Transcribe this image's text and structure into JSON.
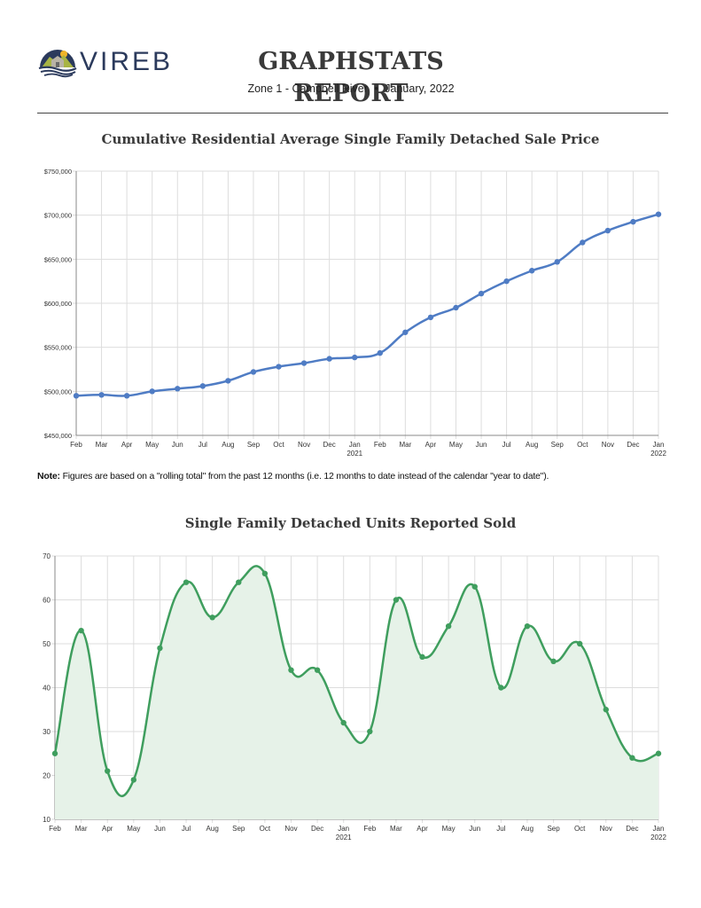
{
  "header": {
    "logo_text": "VIREB",
    "title": "GRAPHSTATS REPORT",
    "zone": "Zone 1 - Campbell River",
    "separator": "•",
    "period": "January, 2022"
  },
  "note": {
    "label": "Note:",
    "text": "Figures are based on a \"rolling total\" from the past 12 months (i.e. 12 months to date instead of the calendar \"year to date\")."
  },
  "colors": {
    "price_line": "#4f7cc4",
    "units_line": "#3f9e5e",
    "units_fill": "#e6f2e8",
    "grid": "#dddddd",
    "axis": "#888888"
  },
  "chart_data": [
    {
      "type": "line",
      "title": "Cumulative Residential Average Single Family Detached Sale Price",
      "xlabel": "",
      "ylabel": "",
      "categories": [
        "Feb",
        "Mar",
        "Apr",
        "May",
        "Jun",
        "Jul",
        "Aug",
        "Sep",
        "Oct",
        "Nov",
        "Dec",
        "Jan",
        "Feb",
        "Mar",
        "Apr",
        "May",
        "Jun",
        "Jul",
        "Aug",
        "Sep",
        "Oct",
        "Nov",
        "Dec",
        "Jan"
      ],
      "year_labels": {
        "11": "2021",
        "23": "2022"
      },
      "series": [
        {
          "name": "Average Sale Price",
          "values": [
            495000,
            496000,
            495000,
            500000,
            503000,
            506000,
            512000,
            522000,
            528000,
            532000,
            537000,
            538500,
            543500,
            567000,
            584000,
            595000,
            611000,
            625000,
            637000,
            647000,
            669000,
            682500,
            692500,
            701000
          ]
        }
      ],
      "ylim": [
        450000,
        750000
      ],
      "yticks": [
        450000,
        500000,
        550000,
        600000,
        650000,
        700000,
        750000
      ],
      "ytick_labels": [
        "$450,000",
        "$500,000",
        "$550,000",
        "$600,000",
        "$650,000",
        "$700,000",
        "$750,000"
      ],
      "grid": true,
      "smooth": false,
      "legend": "none"
    },
    {
      "type": "area",
      "title": "Single Family Detached Units Reported Sold",
      "xlabel": "",
      "ylabel": "",
      "categories": [
        "Feb",
        "Mar",
        "Apr",
        "May",
        "Jun",
        "Jul",
        "Aug",
        "Sep",
        "Oct",
        "Nov",
        "Dec",
        "Jan",
        "Feb",
        "Mar",
        "Apr",
        "May",
        "Jun",
        "Jul",
        "Aug",
        "Sep",
        "Oct",
        "Nov",
        "Dec",
        "Jan"
      ],
      "year_labels": {
        "11": "2021",
        "23": "2022"
      },
      "series": [
        {
          "name": "Units Sold",
          "values": [
            25,
            53,
            21,
            19,
            49,
            64,
            56,
            64,
            66,
            44,
            44,
            32,
            30,
            60,
            47,
            54,
            63,
            40,
            54,
            46,
            50,
            35,
            24,
            25
          ]
        }
      ],
      "ylim": [
        10,
        70
      ],
      "yticks": [
        10,
        20,
        30,
        40,
        50,
        60,
        70
      ],
      "ytick_labels": [
        "10",
        "20",
        "30",
        "40",
        "50",
        "60",
        "70"
      ],
      "grid": true,
      "smooth": true,
      "legend": "none"
    }
  ]
}
